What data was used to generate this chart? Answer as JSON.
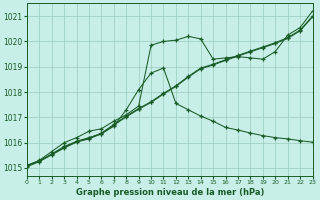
{
  "title": "Graphe pression niveau de la mer (hPa)",
  "bg_color": "#c8eee8",
  "grid_color": "#99ccbb",
  "line_color": "#1a5c28",
  "xlim": [
    0,
    23
  ],
  "ylim": [
    1014.7,
    1021.5
  ],
  "yticks": [
    1015,
    1016,
    1017,
    1018,
    1019,
    1020,
    1021
  ],
  "xticks": [
    0,
    1,
    2,
    3,
    4,
    5,
    6,
    7,
    8,
    9,
    10,
    11,
    12,
    13,
    14,
    15,
    16,
    17,
    18,
    19,
    20,
    21,
    22,
    23
  ],
  "series": [
    {
      "x": [
        0,
        1,
        2,
        3,
        4,
        5,
        6,
        7,
        8,
        9,
        10,
        11,
        12,
        13,
        14,
        15,
        16,
        17,
        18,
        19,
        20,
        21,
        22,
        23
      ],
      "y": [
        1015.1,
        1015.3,
        1015.65,
        1016.0,
        1016.2,
        1016.45,
        1016.55,
        1016.85,
        1017.1,
        1017.45,
        1019.85,
        1020.0,
        1020.05,
        1020.2,
        1020.1,
        1019.3,
        1019.35,
        1019.4,
        1019.35,
        1019.3,
        1019.6,
        1020.25,
        1020.55,
        1021.2
      ]
    },
    {
      "x": [
        0,
        1,
        2,
        3,
        4,
        5,
        6,
        7,
        8,
        9,
        10,
        11,
        12,
        13,
        14,
        15,
        16,
        17,
        18,
        19,
        20,
        21,
        22,
        23
      ],
      "y": [
        1015.1,
        1015.28,
        1015.55,
        1015.82,
        1016.05,
        1016.18,
        1016.38,
        1016.72,
        1017.05,
        1017.35,
        1017.62,
        1017.95,
        1018.25,
        1018.62,
        1018.95,
        1019.1,
        1019.28,
        1019.45,
        1019.62,
        1019.78,
        1019.95,
        1020.15,
        1020.45,
        1021.0
      ]
    },
    {
      "x": [
        0,
        1,
        2,
        3,
        4,
        5,
        6,
        7,
        8,
        9,
        10,
        11,
        12,
        13,
        14,
        15,
        16,
        17,
        18,
        19,
        20,
        21,
        22,
        23
      ],
      "y": [
        1015.08,
        1015.26,
        1015.52,
        1015.79,
        1016.02,
        1016.15,
        1016.35,
        1016.69,
        1017.02,
        1017.32,
        1017.59,
        1017.92,
        1018.22,
        1018.59,
        1018.92,
        1019.07,
        1019.25,
        1019.42,
        1019.59,
        1019.75,
        1019.92,
        1020.12,
        1020.42,
        1020.97
      ]
    },
    {
      "x": [
        0,
        1,
        2,
        3,
        4,
        5,
        6,
        7,
        8,
        9,
        10,
        11,
        12,
        13,
        14,
        15,
        16,
        17,
        18,
        19,
        20,
        21,
        22,
        23
      ],
      "y": [
        1015.05,
        1015.25,
        1015.55,
        1015.85,
        1016.05,
        1016.2,
        1016.35,
        1016.65,
        1017.3,
        1018.1,
        1018.75,
        1018.95,
        1017.55,
        1017.3,
        1017.05,
        1016.85,
        1016.6,
        1016.5,
        1016.38,
        1016.28,
        1016.2,
        1016.15,
        1016.08,
        1016.02
      ]
    }
  ]
}
